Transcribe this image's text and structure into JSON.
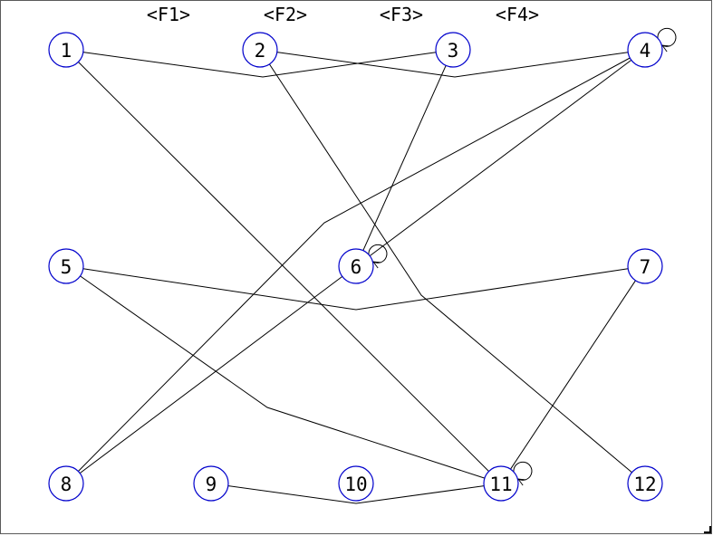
{
  "function_keys": [
    {
      "label": "<F1>"
    },
    {
      "label": "<F2>"
    },
    {
      "label": "<F3>"
    },
    {
      "label": "<F4>"
    }
  ],
  "colors": {
    "node_stroke": "#0000cc",
    "edge_stroke": "#000000"
  },
  "nodes": [
    {
      "id": "1",
      "label": "1"
    },
    {
      "id": "2",
      "label": "2"
    },
    {
      "id": "3",
      "label": "3"
    },
    {
      "id": "4",
      "label": "4",
      "self_loop": true
    },
    {
      "id": "5",
      "label": "5"
    },
    {
      "id": "6",
      "label": "6",
      "self_loop": true
    },
    {
      "id": "7",
      "label": "7"
    },
    {
      "id": "8",
      "label": "8"
    },
    {
      "id": "9",
      "label": "9"
    },
    {
      "id": "10",
      "label": "10"
    },
    {
      "id": "11",
      "label": "11",
      "self_loop": true
    },
    {
      "id": "12",
      "label": "12"
    }
  ],
  "edges": [
    {
      "from": "1",
      "to": "3"
    },
    {
      "from": "2",
      "to": "4"
    },
    {
      "from": "1",
      "to": "11"
    },
    {
      "from": "2",
      "to": "12"
    },
    {
      "from": "3",
      "to": "6"
    },
    {
      "from": "4",
      "to": "6"
    },
    {
      "from": "4",
      "to": "8"
    },
    {
      "from": "5",
      "to": "7"
    },
    {
      "from": "5",
      "to": "11"
    },
    {
      "from": "6",
      "to": "8"
    },
    {
      "from": "7",
      "to": "11"
    },
    {
      "from": "9",
      "to": "11"
    },
    {
      "from": "4",
      "to": "4"
    },
    {
      "from": "6",
      "to": "6"
    },
    {
      "from": "11",
      "to": "11"
    }
  ]
}
